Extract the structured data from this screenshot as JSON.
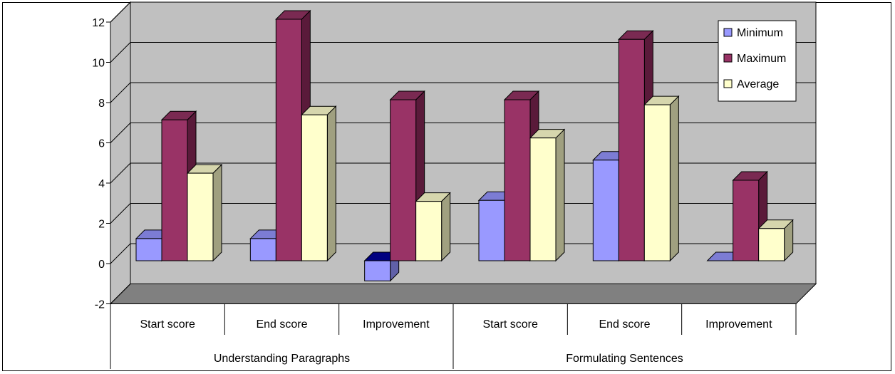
{
  "chart_data": {
    "type": "bar",
    "categories": [
      "Start score",
      "End score",
      "Improvement",
      "Start score",
      "End score",
      "Improvement"
    ],
    "groups": [
      {
        "label": "Understanding Paragraphs",
        "span": [
          0,
          2
        ]
      },
      {
        "label": "Formulating Sentences",
        "span": [
          3,
          5
        ]
      }
    ],
    "series": [
      {
        "name": "Minimum",
        "values": [
          1.1,
          1.1,
          -1.0,
          3.0,
          5.0,
          0.0
        ]
      },
      {
        "name": "Maximum",
        "values": [
          7.0,
          12.0,
          8.0,
          8.0,
          11.0,
          4.0
        ]
      },
      {
        "name": "Average",
        "values": [
          4.35,
          7.25,
          2.95,
          6.1,
          7.75,
          1.6
        ]
      }
    ],
    "ylim": [
      -2,
      12
    ],
    "yticks": [
      "-2",
      "0",
      "2",
      "4",
      "6",
      "8",
      "10",
      "12"
    ],
    "grid": true,
    "legend_position": "top-right",
    "style": "3d-clustered-column"
  },
  "colors": {
    "series": [
      "#9999ff",
      "#993366",
      "#ffffcc"
    ],
    "series_top": [
      "#7c7cd4",
      "#7a2a52",
      "#d6d6ad"
    ],
    "series_side": [
      "#6060a8",
      "#5a1a3a",
      "#a0a080"
    ],
    "wall": "#c0c0c0",
    "floor": "#808080",
    "grid": "#000000"
  }
}
